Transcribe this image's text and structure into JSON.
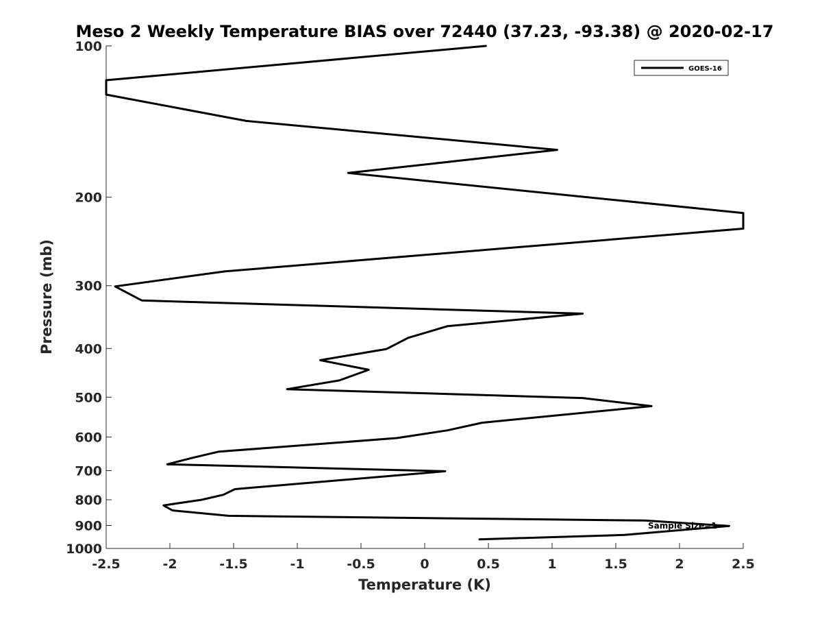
{
  "chart_data": {
    "type": "line",
    "title": "Meso 2 Weekly Temperature BIAS over 72440 (37.23, -93.38) @ 2020-02-17",
    "xlabel": "Temperature (K)",
    "ylabel": "Pressure (mb)",
    "xlim": [
      -2.5,
      2.5
    ],
    "ylim": [
      1000,
      100
    ],
    "yscale": "log",
    "x_ticks": [
      -2.5,
      -2,
      -1.5,
      -1,
      -0.5,
      0,
      0.5,
      1,
      1.5,
      2,
      2.5
    ],
    "x_tick_labels": [
      "-2.5",
      "-2",
      "-1.5",
      "-1",
      "-0.5",
      "0",
      "0.5",
      "1",
      "1.5",
      "2",
      "2.5"
    ],
    "y_ticks": [
      100,
      200,
      300,
      400,
      500,
      600,
      700,
      800,
      900,
      1000
    ],
    "y_tick_labels": [
      "100",
      "200",
      "300",
      "400",
      "500",
      "600",
      "700",
      "800",
      "900",
      "1000"
    ],
    "grid": false,
    "legend_position": "top-right",
    "annotation": "Sample Size=1",
    "series": [
      {
        "name": "GOES-16",
        "color": "#000000",
        "points": [
          [
            0.48,
            100
          ],
          [
            -2.5,
            117
          ],
          [
            -2.5,
            125
          ],
          [
            -1.4,
            141
          ],
          [
            1.04,
            161
          ],
          [
            -0.6,
            179
          ],
          [
            2.5,
            215
          ],
          [
            2.5,
            231
          ],
          [
            -1.57,
            281
          ],
          [
            -2.43,
            301
          ],
          [
            -2.22,
            321
          ],
          [
            1.24,
            341
          ],
          [
            0.18,
            361
          ],
          [
            -0.13,
            381
          ],
          [
            -0.3,
            401
          ],
          [
            -0.82,
            422
          ],
          [
            -0.44,
            441
          ],
          [
            -0.67,
            463
          ],
          [
            -1.08,
            482
          ],
          [
            1.24,
            502
          ],
          [
            1.78,
            521
          ],
          [
            0.45,
            562
          ],
          [
            0.18,
            582
          ],
          [
            -0.22,
            603
          ],
          [
            -1.62,
            642
          ],
          [
            -1.82,
            660
          ],
          [
            -2.02,
            680
          ],
          [
            0.16,
            702
          ],
          [
            -1.49,
            762
          ],
          [
            -1.58,
            782
          ],
          [
            -1.75,
            800
          ],
          [
            -2.05,
            821
          ],
          [
            -1.98,
            840
          ],
          [
            -1.54,
            861
          ],
          [
            1.73,
            880
          ],
          [
            2.39,
            902
          ],
          [
            1.57,
            940
          ],
          [
            0.43,
            959
          ]
        ]
      }
    ]
  }
}
